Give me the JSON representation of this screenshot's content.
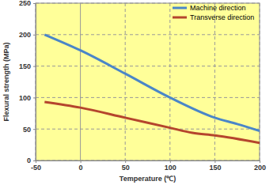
{
  "chart_data": {
    "type": "line",
    "x_label": "Temperature (℃)",
    "y_label": "Flexural strength (MPa)",
    "xlim": [
      -50,
      200
    ],
    "xticks": [
      -50,
      0,
      50,
      100,
      150,
      200
    ],
    "ylim": [
      0,
      250
    ],
    "yticks": [
      0,
      50,
      100,
      150,
      200,
      250
    ],
    "grid": true,
    "legend": "upper right",
    "series": [
      {
        "name": "Machine direction",
        "color": "#4a86c8",
        "x": [
          -40,
          0,
          50,
          100,
          150,
          175,
          200
        ],
        "values": [
          200,
          175,
          138,
          100,
          68,
          58,
          47
        ]
      },
      {
        "name": "Transverse direction",
        "color": "#b5452d",
        "x": [
          -40,
          0,
          50,
          100,
          125,
          150,
          200
        ],
        "values": [
          93,
          84,
          68,
          52,
          44,
          40,
          28
        ]
      }
    ]
  }
}
